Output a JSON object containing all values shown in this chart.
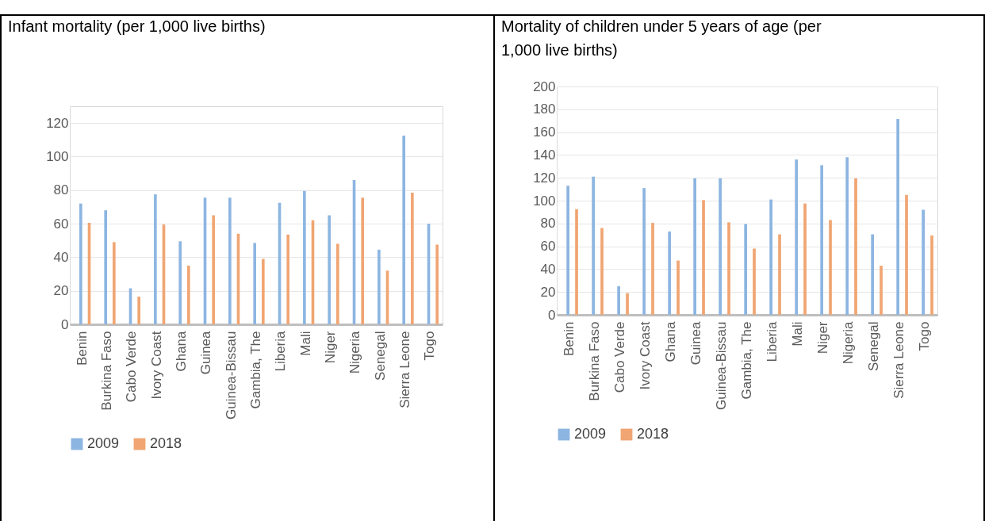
{
  "chart_data": [
    {
      "type": "bar",
      "title": "Infant mortality (per 1,000 live births)",
      "categories": [
        "Benin",
        "Burkina Faso",
        "Cabo Verde",
        "Ivory Coast",
        "Ghana",
        "Guinea",
        "Guinea-Bissau",
        "Gambia, The",
        "Liberia",
        "Mali",
        "Niger",
        "Nigeria",
        "Senegal",
        "Sierra Leone",
        "Togo"
      ],
      "series": [
        {
          "name": "2009",
          "color": "#8cb5e1",
          "values": [
            72,
            68,
            21.5,
            77.5,
            49.5,
            75.5,
            75.5,
            48.5,
            72.5,
            79.5,
            65,
            86,
            44.5,
            112.5,
            60
          ]
        },
        {
          "name": "2018",
          "color": "#f0a572",
          "values": [
            60.5,
            49,
            16.5,
            59.5,
            35,
            65,
            54,
            39,
            53.5,
            62,
            48,
            75.5,
            32,
            78.5,
            47.5
          ]
        }
      ],
      "ylim": [
        0,
        130
      ],
      "yticks": [
        0,
        20,
        40,
        60,
        80,
        100,
        120
      ],
      "grid": "y",
      "legend": "bottom"
    },
    {
      "type": "bar",
      "title": "Mortality of children under 5 years of age (per 1,000 live births)",
      "categories": [
        "Benin",
        "Burkina Faso",
        "Cabo Verde",
        "Ivory Coast",
        "Ghana",
        "Guinea",
        "Guinea-Bissau",
        "Gambia, The",
        "Liberia",
        "Mali",
        "Niger",
        "Nigeria",
        "Senegal",
        "Sierra Leone",
        "Togo"
      ],
      "series": [
        {
          "name": "2009",
          "color": "#8cb5e1",
          "values": [
            113,
            121,
            25,
            111,
            73,
            119.5,
            119.5,
            79.5,
            101,
            136,
            131,
            138,
            70.5,
            171.5,
            92
          ]
        },
        {
          "name": "2018",
          "color": "#f0a572",
          "values": [
            92.5,
            76,
            19,
            80.5,
            47.5,
            100.5,
            81,
            58,
            70.5,
            97.5,
            83,
            119.5,
            43,
            105,
            69.5
          ]
        }
      ],
      "ylim": [
        0,
        200
      ],
      "yticks": [
        0,
        20,
        40,
        60,
        80,
        100,
        120,
        140,
        160,
        180,
        200
      ],
      "grid": "y",
      "legend": "bottom"
    }
  ]
}
